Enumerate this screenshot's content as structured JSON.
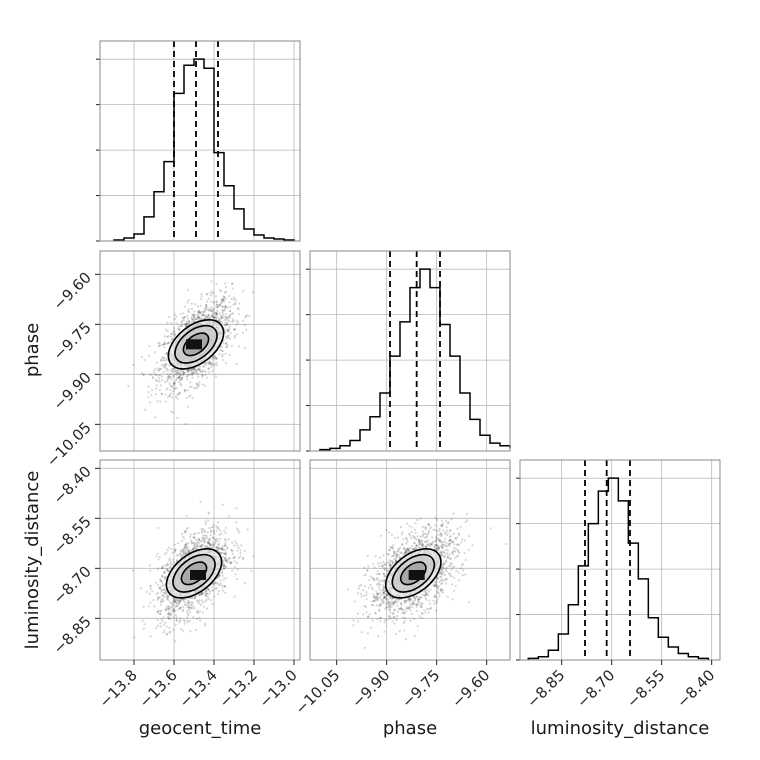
{
  "chart_data": {
    "type": "corner",
    "parameters": [
      "geocent_time",
      "phase",
      "luminosity_distance"
    ],
    "axis_labels": [
      "geocent_time",
      "phase",
      "luminosity_distance"
    ],
    "axes": {
      "geocent_time": {
        "range": [
          -13.97,
          -12.97
        ],
        "ticks": [
          -13.8,
          -13.6,
          -13.4,
          -13.2,
          -13.0
        ],
        "tick_labels": [
          "−13.8",
          "−13.6",
          "−13.4",
          "−13.2",
          "−13.0"
        ]
      },
      "phase": {
        "range": [
          -10.13,
          -9.53
        ],
        "ticks": [
          -10.05,
          -9.9,
          -9.75,
          -9.6
        ],
        "tick_labels": [
          "−10.05",
          "−9.90",
          "−9.75",
          "−9.60"
        ]
      },
      "luminosity_distance": {
        "range": [
          -8.975,
          -8.375
        ],
        "ticks": [
          -8.85,
          -8.7,
          -8.55,
          -8.4
        ],
        "tick_labels": [
          "−8.85",
          "−8.70",
          "−8.55",
          "−8.40"
        ]
      }
    },
    "histograms": {
      "geocent_time": {
        "edges": [
          -13.9,
          -13.85,
          -13.8,
          -13.75,
          -13.7,
          -13.65,
          -13.6,
          -13.55,
          -13.5,
          -13.45,
          -13.4,
          -13.35,
          -13.3,
          -13.25,
          -13.2,
          -13.15,
          -13.1,
          -13.05,
          -13.0
        ],
        "counts": [
          1,
          3,
          7,
          24,
          49,
          79,
          147,
          175,
          181,
          172,
          88,
          55,
          32,
          12,
          6,
          3,
          2,
          1
        ],
        "quantiles": [
          -13.6,
          -13.49,
          -13.38
        ]
      },
      "phase": {
        "edges": [
          -10.1,
          -10.07,
          -10.04,
          -10.01,
          -9.98,
          -9.95,
          -9.92,
          -9.89,
          -9.86,
          -9.83,
          -9.8,
          -9.77,
          -9.74,
          -9.71,
          -9.68,
          -9.65,
          -9.62,
          -9.59,
          -9.56,
          -9.53
        ],
        "counts": [
          1,
          2,
          4,
          8,
          16,
          26,
          44,
          72,
          98,
          124,
          138,
          124,
          96,
          72,
          44,
          24,
          12,
          6,
          4,
          2
        ],
        "quantiles": [
          -9.89,
          -9.81,
          -9.74
        ]
      },
      "luminosity_distance": {
        "edges": [
          -8.95,
          -8.92,
          -8.89,
          -8.86,
          -8.83,
          -8.8,
          -8.77,
          -8.74,
          -8.71,
          -8.68,
          -8.65,
          -8.62,
          -8.59,
          -8.56,
          -8.53,
          -8.5,
          -8.47,
          -8.44,
          -8.41
        ],
        "counts": [
          1,
          2,
          6,
          16,
          34,
          58,
          84,
          104,
          112,
          98,
          72,
          50,
          26,
          14,
          8,
          4,
          2,
          1
        ],
        "quantiles": [
          -8.78,
          -8.715,
          -8.645
        ]
      }
    },
    "pairs": [
      {
        "x": "geocent_time",
        "y": "phase",
        "center": [
          -13.49,
          -9.81
        ],
        "sd": [
          0.09,
          0.065
        ],
        "corr": 0.55,
        "contours": [
          [
            0.72,
            0.66
          ],
          [
            0.55,
            0.5
          ],
          [
            0.33,
            0.3
          ]
        ],
        "density_peak": [
          -13.5,
          -9.81
        ]
      },
      {
        "x": "geocent_time",
        "y": "luminosity_distance",
        "center": [
          -13.5,
          -8.715
        ],
        "sd": [
          0.09,
          0.065
        ],
        "corr": 0.5,
        "contours": [
          [
            0.72,
            0.66
          ],
          [
            0.55,
            0.5
          ],
          [
            0.33,
            0.3
          ]
        ],
        "density_peak": [
          -13.48,
          -8.72
        ]
      },
      {
        "x": "phase",
        "y": "luminosity_distance",
        "center": [
          -9.82,
          -8.715
        ],
        "sd": [
          0.065,
          0.065
        ],
        "corr": 0.5,
        "contours": [
          [
            0.72,
            0.66
          ],
          [
            0.55,
            0.5
          ],
          [
            0.33,
            0.3
          ]
        ],
        "density_peak": [
          -9.81,
          -8.72
        ]
      }
    ]
  }
}
